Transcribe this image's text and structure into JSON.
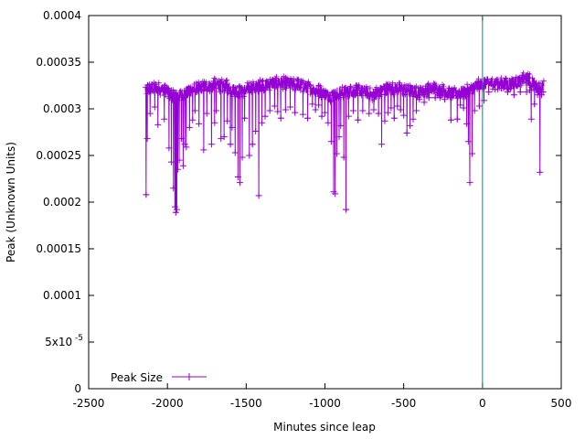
{
  "chart_data": {
    "type": "line",
    "title": "",
    "xlabel": "Minutes since leap",
    "ylabel": "Peak (Unknown Units)",
    "xlim": [
      -2500,
      500
    ],
    "ylim": [
      0,
      0.0004
    ],
    "x_ticks": [
      {
        "value": -2500,
        "label": "-2500"
      },
      {
        "value": -2000,
        "label": "-2000"
      },
      {
        "value": -1500,
        "label": "-1500"
      },
      {
        "value": -1000,
        "label": "-1000"
      },
      {
        "value": -500,
        "label": "-500"
      },
      {
        "value": 0,
        "label": "0"
      },
      {
        "value": 500,
        "label": "500"
      }
    ],
    "y_ticks": [
      {
        "value": 0,
        "label": "0"
      },
      {
        "value": 5e-05,
        "label": "5x10",
        "exp": "-5"
      },
      {
        "value": 0.0001,
        "label": "0.0001"
      },
      {
        "value": 0.00015,
        "label": "0.00015"
      },
      {
        "value": 0.0002,
        "label": "0.0002"
      },
      {
        "value": 0.00025,
        "label": "0.00025"
      },
      {
        "value": 0.0003,
        "label": "0.0003"
      },
      {
        "value": 0.00035,
        "label": "0.00035"
      },
      {
        "value": 0.0004,
        "label": "0.0004"
      }
    ],
    "vertical_line": {
      "x": 0,
      "color": "#008b8b"
    },
    "legend": {
      "position": "bottom-left"
    },
    "series": [
      {
        "name": "Peak Size",
        "color": "#9400d3",
        "baseline": [
          [
            -2140,
            0.000321
          ],
          [
            -2050,
            0.000322
          ],
          [
            -1990,
            0.000317
          ],
          [
            -1930,
            0.000314
          ],
          [
            -1860,
            0.000319
          ],
          [
            -1780,
            0.000323
          ],
          [
            -1700,
            0.000326
          ],
          [
            -1620,
            0.000324
          ],
          [
            -1550,
            0.000318
          ],
          [
            -1480,
            0.000322
          ],
          [
            -1420,
            0.000325
          ],
          [
            -1340,
            0.000327
          ],
          [
            -1260,
            0.000328
          ],
          [
            -1180,
            0.000326
          ],
          [
            -1100,
            0.000323
          ],
          [
            -1020,
            0.000318
          ],
          [
            -960,
            0.000314
          ],
          [
            -900,
            0.000318
          ],
          [
            -830,
            0.000321
          ],
          [
            -760,
            0.000319
          ],
          [
            -700,
            0.000315
          ],
          [
            -640,
            0.00032
          ],
          [
            -560,
            0.000322
          ],
          [
            -480,
            0.000321
          ],
          [
            -420,
            0.000318
          ],
          [
            -360,
            0.00032
          ],
          [
            -300,
            0.000322
          ],
          [
            -240,
            0.000319
          ],
          [
            -180,
            0.000316
          ],
          [
            -130,
            0.000318
          ],
          [
            -80,
            0.00032
          ],
          [
            -30,
            0.000325
          ],
          [
            0,
            0.000327
          ],
          [
            60,
            0.000328
          ],
          [
            120,
            0.000327
          ],
          [
            180,
            0.000327
          ],
          [
            240,
            0.00033
          ],
          [
            280,
            0.000333
          ],
          [
            320,
            0.000328
          ],
          [
            360,
            0.000322
          ],
          [
            390,
            0.000324
          ]
        ],
        "dips": [
          [
            -2135,
            0.000208
          ],
          [
            -2128,
            0.000268
          ],
          [
            -2110,
            0.000295
          ],
          [
            -2080,
            0.000302
          ],
          [
            -2060,
            0.000283
          ],
          [
            -2020,
            0.000289
          ],
          [
            -1990,
            0.000258
          ],
          [
            -1975,
            0.000243
          ],
          [
            -1962,
            0.000215
          ],
          [
            -1952,
            0.000195
          ],
          [
            -1947,
            0.000189
          ],
          [
            -1940,
            0.000192
          ],
          [
            -1935,
            0.000235
          ],
          [
            -1925,
            0.000245
          ],
          [
            -1910,
            0.000268
          ],
          [
            -1900,
            0.000239
          ],
          [
            -1890,
            0.000262
          ],
          [
            -1880,
            0.000259
          ],
          [
            -1860,
            0.00028
          ],
          [
            -1840,
            0.000288
          ],
          [
            -1825,
            0.000298
          ],
          [
            -1800,
            0.000284
          ],
          [
            -1770,
            0.000256
          ],
          [
            -1750,
            0.000295
          ],
          [
            -1720,
            0.000262
          ],
          [
            -1700,
            0.000285
          ],
          [
            -1690,
            0.000298
          ],
          [
            -1660,
            0.000268
          ],
          [
            -1640,
            0.00027
          ],
          [
            -1620,
            0.000287
          ],
          [
            -1600,
            0.000262
          ],
          [
            -1590,
            0.00028
          ],
          [
            -1570,
            0.000253
          ],
          [
            -1552,
            0.000227
          ],
          [
            -1540,
            0.000221
          ],
          [
            -1525,
            0.000248
          ],
          [
            -1510,
            0.00029
          ],
          [
            -1480,
            0.00025
          ],
          [
            -1460,
            0.000262
          ],
          [
            -1440,
            0.000276
          ],
          [
            -1420,
            0.000207
          ],
          [
            -1400,
            0.000285
          ],
          [
            -1380,
            0.000292
          ],
          [
            -1350,
            0.000298
          ],
          [
            -1320,
            0.000303
          ],
          [
            -1300,
            0.000297
          ],
          [
            -1280,
            0.00029
          ],
          [
            -1250,
            0.000299
          ],
          [
            -1220,
            0.000302
          ],
          [
            -1190,
            0.000296
          ],
          [
            -1140,
            0.000294
          ],
          [
            -1110,
            0.00029
          ],
          [
            -1080,
            0.000305
          ],
          [
            -1060,
            0.000299
          ],
          [
            -1040,
            0.000304
          ],
          [
            -1020,
            0.000292
          ],
          [
            -1000,
            0.000296
          ],
          [
            -980,
            0.000285
          ],
          [
            -960,
            0.000265
          ],
          [
            -945,
            0.000211
          ],
          [
            -935,
            0.000209
          ],
          [
            -925,
            0.000252
          ],
          [
            -910,
            0.00027
          ],
          [
            -900,
            0.000282
          ],
          [
            -880,
            0.000248
          ],
          [
            -866,
            0.000192
          ],
          [
            -850,
            0.000292
          ],
          [
            -820,
            0.000298
          ],
          [
            -790,
            0.000288
          ],
          [
            -760,
            0.000298
          ],
          [
            -720,
            0.000295
          ],
          [
            -690,
            0.000299
          ],
          [
            -660,
            0.000295
          ],
          [
            -640,
            0.000262
          ],
          [
            -620,
            0.000287
          ],
          [
            -600,
            0.000296
          ],
          [
            -580,
            0.000301
          ],
          [
            -560,
            0.00029
          ],
          [
            -540,
            0.000303
          ],
          [
            -520,
            0.000299
          ],
          [
            -500,
            0.000293
          ],
          [
            -480,
            0.000274
          ],
          [
            -460,
            0.000282
          ],
          [
            -440,
            0.000289
          ],
          [
            -420,
            0.000298
          ],
          [
            -400,
            0.00031
          ],
          [
            -370,
            0.000307
          ],
          [
            -340,
            0.000312
          ],
          [
            -300,
            0.000312
          ],
          [
            -270,
            0.000312
          ],
          [
            -240,
            0.00031
          ],
          [
            -200,
            0.000288
          ],
          [
            -160,
            0.000289
          ],
          [
            -140,
            0.000304
          ],
          [
            -120,
            0.000301
          ],
          [
            -100,
            0.000284
          ],
          [
            -90,
            0.000265
          ],
          [
            -80,
            0.000221
          ],
          [
            -65,
            0.000252
          ],
          [
            -50,
            0.000298
          ],
          [
            -20,
            0.000303
          ],
          [
            10,
            0.000309
          ],
          [
            40,
            0.000318
          ],
          [
            80,
            0.000321
          ],
          [
            120,
            0.000322
          ],
          [
            160,
            0.000318
          ],
          [
            200,
            0.000315
          ],
          [
            240,
            0.000318
          ],
          [
            280,
            0.000318
          ],
          [
            300,
            0.00032
          ],
          [
            310,
            0.000289
          ],
          [
            330,
            0.000305
          ],
          [
            350,
            0.000315
          ],
          [
            365,
            0.000232
          ],
          [
            375,
            0.000315
          ],
          [
            385,
            0.000318
          ]
        ]
      }
    ]
  }
}
